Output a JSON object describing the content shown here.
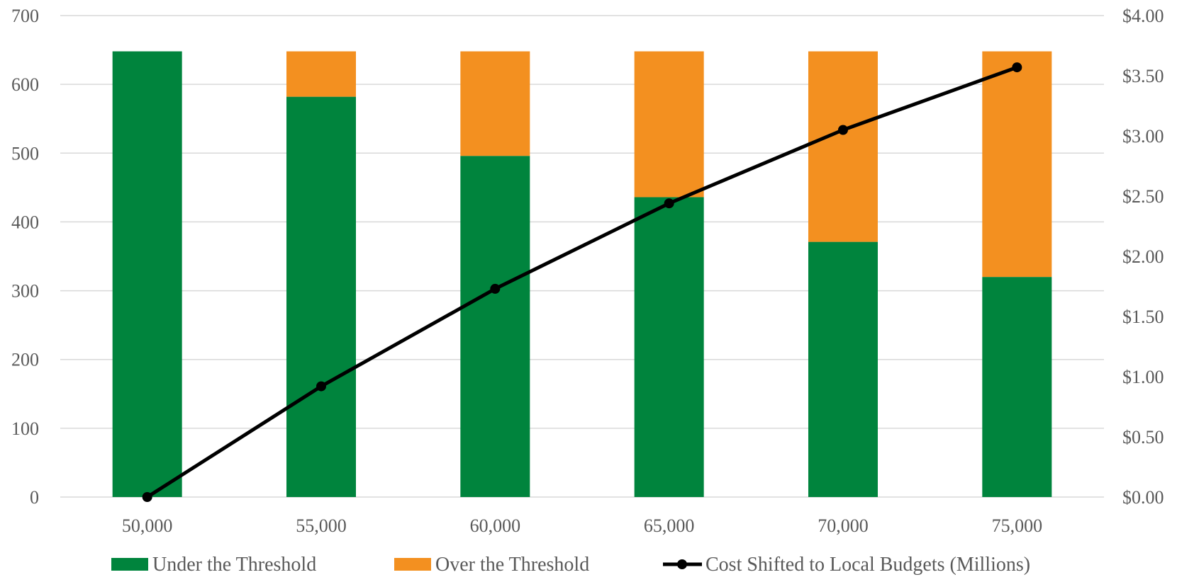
{
  "chart_data": {
    "type": "bar",
    "stacked": true,
    "title": "",
    "xlabel": "",
    "ylabel": "",
    "categories": [
      "50,000",
      "55,000",
      "60,000",
      "65,000",
      "70,000",
      "75,000"
    ],
    "series": [
      {
        "name": "Under the Threshold",
        "type": "bar",
        "axis": "left",
        "color": "#00843D",
        "values": [
          648,
          582,
          496,
          436,
          371,
          320
        ]
      },
      {
        "name": "Over the Threshold",
        "type": "bar",
        "axis": "left",
        "color": "#F39020",
        "values": [
          0,
          66,
          152,
          212,
          277,
          328
        ]
      },
      {
        "name": "Cost Shifted to Local Budgets (Millions)",
        "type": "line",
        "axis": "right",
        "color": "#000000",
        "values": [
          0.0,
          0.92,
          1.73,
          2.44,
          3.05,
          3.57
        ]
      }
    ],
    "y_left": {
      "range": [
        0,
        700
      ],
      "ticks": [
        0,
        100,
        200,
        300,
        400,
        500,
        600,
        700
      ],
      "tick_labels": [
        "0",
        "100",
        "200",
        "300",
        "400",
        "500",
        "600",
        "700"
      ]
    },
    "y_right": {
      "range": [
        0,
        4
      ],
      "ticks": [
        0,
        0.5,
        1,
        1.5,
        2,
        2.5,
        3,
        3.5,
        4
      ],
      "tick_labels": [
        "$0.00",
        "$0.50",
        "$1.00",
        "$1.50",
        "$2.00",
        "$2.50",
        "$3.00",
        "$3.50",
        "$4.00"
      ]
    },
    "grid": true,
    "legend_position": "bottom",
    "gridline_color": "#D9D9D9"
  }
}
